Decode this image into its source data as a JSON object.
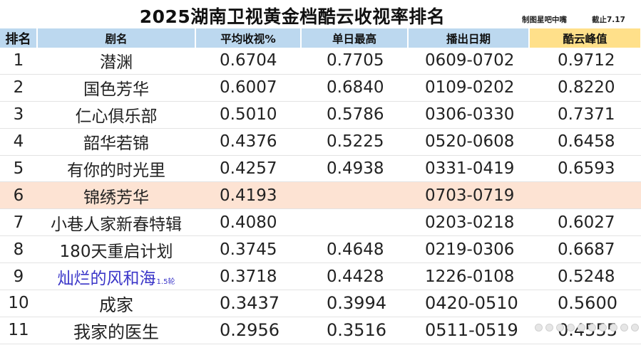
{
  "header": {
    "title": "2025湖南卫视黄金档酷云收视率排名",
    "credit": "制图星吧中嘴",
    "cutoff": "截止7.17"
  },
  "columns": [
    "排名",
    "剧名",
    "平均收视%",
    "单日最高",
    "播出日期",
    "酷云峰值"
  ],
  "colors": {
    "header_bg": "#bcd8ef",
    "peak_header_bg": "#ffe08a",
    "highlight_row": "#fde3d3",
    "note_text": "#3a35c8"
  },
  "rows": [
    {
      "rank": "1",
      "name": "潜渊",
      "note": "",
      "avg": "0.6704",
      "daily_max": "0.7705",
      "dates": "0609-0702",
      "peak": "0.9712"
    },
    {
      "rank": "2",
      "name": "国色芳华",
      "note": "",
      "avg": "0.6007",
      "daily_max": "0.6840",
      "dates": "0109-0202",
      "peak": "0.8220"
    },
    {
      "rank": "3",
      "name": "仁心俱乐部",
      "note": "",
      "avg": "0.5010",
      "daily_max": "0.5786",
      "dates": "0306-0330",
      "peak": "0.7371"
    },
    {
      "rank": "4",
      "name": "韶华若锦",
      "note": "",
      "avg": "0.4376",
      "daily_max": "0.5225",
      "dates": "0520-0608",
      "peak": "0.6458"
    },
    {
      "rank": "5",
      "name": "有你的时光里",
      "note": "",
      "avg": "0.4257",
      "daily_max": "0.4938",
      "dates": "0331-0419",
      "peak": "0.6593"
    },
    {
      "rank": "6",
      "name": "锦绣芳华",
      "note": "",
      "avg": "0.4193",
      "daily_max": "",
      "dates": "0703-0719",
      "peak": ""
    },
    {
      "rank": "7",
      "name": "小巷人家新春特辑",
      "note": "",
      "avg": "0.4080",
      "daily_max": "",
      "dates": "0203-0218",
      "peak": "0.6027"
    },
    {
      "rank": "8",
      "name": "180天重启计划",
      "note": "",
      "avg": "0.3745",
      "daily_max": "0.4648",
      "dates": "0219-0306",
      "peak": "0.6687"
    },
    {
      "rank": "9",
      "name": "灿烂的风和海",
      "note": "1.5轮",
      "avg": "0.3718",
      "daily_max": "0.4428",
      "dates": "1226-0108",
      "peak": "0.5248"
    },
    {
      "rank": "10",
      "name": "成家",
      "note": "",
      "avg": "0.3437",
      "daily_max": "0.3994",
      "dates": "0420-0510",
      "peak": "0.5600"
    },
    {
      "rank": "11",
      "name": "我家的医生",
      "note": "",
      "avg": "0.2956",
      "daily_max": "0.3516",
      "dates": "0511-0519",
      "peak": "0.4555"
    }
  ]
}
